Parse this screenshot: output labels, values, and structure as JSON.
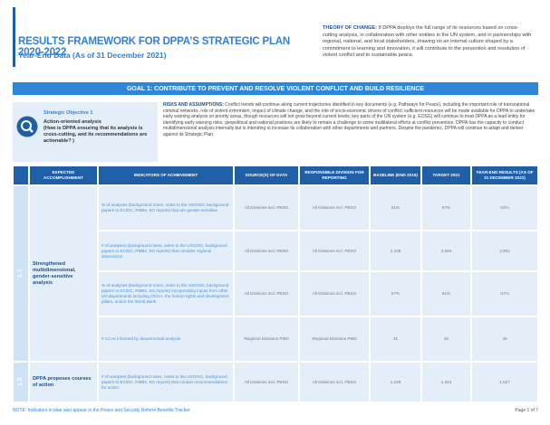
{
  "header": {
    "title": "RESULTS FRAMEWORK FOR DPPA’S STRATEGIC PLAN 2020-2022",
    "subtitle": "Year-End Data (As of 31 December 2021)"
  },
  "theory": {
    "label": "THEORY OF CHANGE:",
    "text": "If DPPA deploys the full range of its resources based on cross-cutting analysis, in collaboration with other entities in the UN system, and in partnerships with regional, national, and local stakeholders, drawing on an internal culture shaped by a commitment to learning and innovation, it will contribute to the prevention and resolution of violent conflict and to sustainable peace."
  },
  "goal": {
    "label": "GOAL 1: CONTRIBUTE TO PREVENT AND RESOLVE VIOLENT CONFLICT AND BUILD RESILIENCE"
  },
  "objective": {
    "number": "Strategic Objective 1",
    "title": "Action-oriented analysis",
    "question": "(How is DPPA ensuring that its analysis is cross-cutting, and its recommendations are actionable? )"
  },
  "risks": {
    "label": "RISKS AND ASSUMPTIONS:",
    "text": "Conflict trends will continue along current trajectories identified in key documents (e.g. Pathways for Peace), including the important role of transnational criminal networks, role of violent extremism, impact of climate change, and the role of socio-economic drivers of conflict; sufficient resources will be made available for DPPA to undertake early warning analysis on priority areas, though resources will not grow beyond current levels; key parts of the UN system (e.g. EOSG) will continue to treat DPPA as a lead entity for identifying early warning risks; geopolitical and national positions are likely to remain a challenge to some multilateral efforts at conflict prevention. DPPA has the capacity to conduct multidimensional analysis internally but is intending to increase its collaboration with other departments and partners. Despite the pandemic, DPPA will continue to adapt and deliver against its Strategic Plan."
  },
  "table": {
    "columns": [
      "EXPECTED ACCOMPLISHMENT",
      "INDICATORS OF ACHIEVEMENT",
      "SOURCE(S) OF DATA",
      "RESPONSIBLE DIVISION FOR REPORTING",
      "BASELINE (END 2019)",
      "TARGET 2021",
      "YEAR-END RESULTS (AS OF 31 DECEMBER 2021)"
    ],
    "groups": [
      {
        "id": "1.1",
        "accomplishment": "Strengthened multidimensional, gender-sensitive analysis",
        "rows": [
          {
            "indicator": "% of analyses (background notes, notes to the USG/SG, background papers to EC/DC, RMBs, SG reports) that are gender-sensitive",
            "source": "All Divisions incl. PBSO",
            "responsible": "All Divisions incl. PBSO",
            "baseline": "51%",
            "target": "67%",
            "result": "63%"
          },
          {
            "indicator": "# of analyses (background notes, notes to the USG/SG, background papers to EC/DC, RMBs, SG reports) that consider regional dimensions",
            "source": "All Divisions incl. PBSO",
            "responsible": "All Divisions incl. PBSO",
            "baseline": "2,108",
            "target": "2,594",
            "result": "2,902"
          },
          {
            "indicator": "% of analyses (background notes, notes to the USG/SG, background papers to EC/DC, RMBs, SG reports) incorporating inputs from other UN departments including OCHA, the human rights and development pillars, and/or the World Bank",
            "source": "All Divisions incl. PBSO",
            "responsible": "All Divisions incl. PBSO",
            "baseline": "57%",
            "target": "61%",
            "result": "67%"
          },
          {
            "indicator": "# CCAs informed by departmental analysis",
            "source": "Regional Divisions PMD",
            "responsible": "Regional Divisions PMD",
            "baseline": "31",
            "target": "40",
            "result": "40"
          }
        ]
      },
      {
        "id": "1.2",
        "accomplishment": "DPPA proposes courses of action",
        "rows": [
          {
            "indicator": "# of analyses (background notes, notes to the USG/SG, background papers to EC/DC, RMBs, SG reports) that contain recommendations for action",
            "source": "All Divisions incl. PBSO",
            "responsible": "All Divisions incl. PBSO",
            "baseline": "1,239",
            "target": "1,344",
            "result": "1,527"
          }
        ]
      }
    ]
  },
  "footer": {
    "note": "NOTE: Indicators in blue also appear in the Peace and Security Reform Benefits Tracker",
    "page": "Page 1 of 7"
  }
}
